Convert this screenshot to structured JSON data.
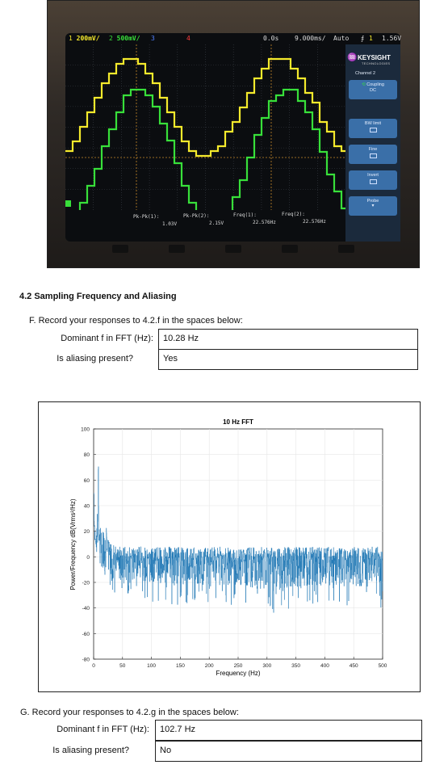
{
  "scope": {
    "ch1_scale": "200mV/",
    "ch2_scale": "500mV/",
    "ch3_num": "3",
    "ch4_num": "4",
    "time_offset": "0.0s",
    "time_scale": "9.000ms/",
    "trigger_mode": "Auto",
    "trigger_symbol": "⨎",
    "trigger_channel": "1",
    "trigger_level": "1.56V",
    "brand": "KEYSIGHT",
    "brand_sub": "TECHNOLOGIES",
    "menu_title": "Channel 2",
    "coupling_label": "Coupling",
    "coupling_value": "DC",
    "bw_limit": "BW limit",
    "fine": "Fine",
    "invert": "Invert",
    "probe": "Probe",
    "measurements": [
      {
        "label": "Pk-Pk(1):",
        "value": "1.03V"
      },
      {
        "label": "Pk-Pk(2):",
        "value": "2.15V"
      },
      {
        "label": "Freq(1):",
        "value": "22.576Hz"
      },
      {
        "label": "Freq(2):",
        "value": "22.576Hz"
      }
    ],
    "trace_colors": {
      "ch1": "#f5ea2c",
      "ch2": "#38e03a"
    }
  },
  "section": {
    "title": "4.2 Sampling Frequency and Aliasing"
  },
  "part_f": {
    "instruction": "F.  Record your responses to 4.2.f in the spaces below:",
    "dominant_label": "Dominant f in FFT (Hz):",
    "dominant_value": "10.28 Hz",
    "aliasing_label": "Is aliasing present?",
    "aliasing_value": "Yes"
  },
  "part_g": {
    "instruction": "G.  Record your responses to 4.2.g in the spaces below:",
    "dominant_label": "Dominant f in FFT (Hz):",
    "dominant_value": "102.7 Hz",
    "aliasing_label": "Is aliasing present?",
    "aliasing_value": "No"
  },
  "chart_data": {
    "type": "line",
    "title": "10 Hz FFT",
    "xlabel": "Frequency (Hz)",
    "ylabel": "Power/Frequency dB(Vrms²/Hz)",
    "xlim": [
      0,
      500
    ],
    "ylim": [
      -80,
      100
    ],
    "xticks": [
      0,
      50,
      100,
      150,
      200,
      250,
      300,
      350,
      400,
      450,
      500
    ],
    "yticks": [
      -80,
      -60,
      -40,
      -20,
      0,
      20,
      40,
      60,
      80,
      100
    ],
    "grid": true,
    "color": "#1f77b4",
    "series": [
      {
        "x": [
          0,
          1,
          2,
          3,
          4,
          5,
          6,
          7,
          8,
          10,
          12,
          14,
          16,
          18,
          20,
          22,
          25,
          28,
          30,
          35,
          40,
          50,
          60,
          80,
          100,
          150,
          200,
          250,
          300,
          350,
          400,
          450,
          500
        ],
        "y_upper": [
          90,
          30,
          22,
          20,
          21,
          23,
          35,
          22,
          80,
          30,
          25,
          22,
          20,
          18,
          15,
          38,
          14,
          12,
          10,
          9,
          9,
          8,
          8,
          8,
          8,
          8,
          8,
          8,
          8,
          8,
          8,
          8,
          8
        ],
        "y_lower": [
          10,
          8,
          6,
          5,
          4,
          3,
          2,
          0,
          2,
          -5,
          -10,
          -20,
          -25,
          -35,
          -30,
          -15,
          -25,
          -45,
          -30,
          -40,
          -25,
          -35,
          -50,
          -30,
          -35,
          -38,
          -38,
          -38,
          -45,
          -40,
          -38,
          -40,
          -40
        ],
        "y_typical": [
          50,
          20,
          15,
          12,
          12,
          12,
          20,
          12,
          40,
          10,
          5,
          3,
          2,
          2,
          2,
          10,
          1,
          0,
          -2,
          -3,
          -3,
          -3,
          -3,
          -3,
          -3,
          -3,
          -3,
          -3,
          -3,
          -3,
          -3,
          -3,
          -3
        ]
      }
    ]
  }
}
